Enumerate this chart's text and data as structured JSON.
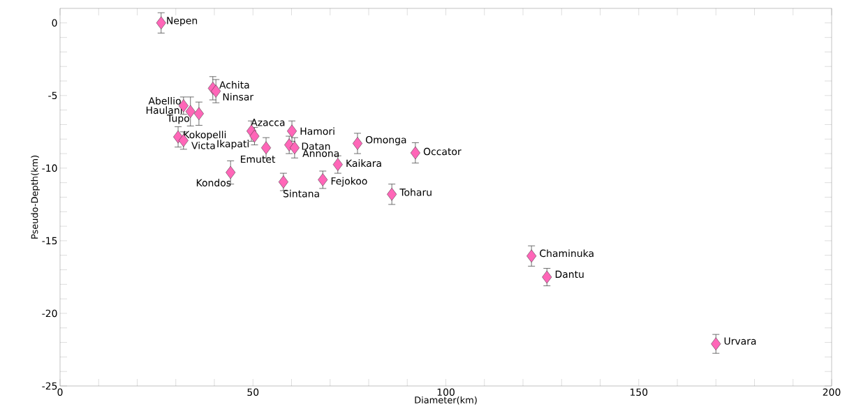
{
  "chart_data": {
    "type": "scatter",
    "xlabel": "Diameter(km)",
    "ylabel": "Pseudo-Depth(km)",
    "xlim": [
      0,
      200
    ],
    "ylim": [
      -25,
      1
    ],
    "xticks": [
      0,
      {
        "value": 10,
        "label": null
      },
      {
        "value": 20,
        "label": null
      },
      {
        "value": 30,
        "label": null
      },
      {
        "value": 40,
        "label": null
      },
      50,
      {
        "value": 60,
        "label": null
      },
      {
        "value": 70,
        "label": null
      },
      {
        "value": 80,
        "label": null
      },
      {
        "value": 90,
        "label": null
      },
      100,
      {
        "value": 110,
        "label": null
      },
      {
        "value": 120,
        "label": null
      },
      {
        "value": 130,
        "label": null
      },
      {
        "value": 140,
        "label": null
      },
      150,
      {
        "value": 160,
        "label": null
      },
      {
        "value": 170,
        "label": null
      },
      {
        "value": 180,
        "label": null
      },
      {
        "value": 190,
        "label": null
      },
      200
    ],
    "yticks": [
      -25,
      {
        "value": -24,
        "label": null
      },
      {
        "value": -23,
        "label": null
      },
      {
        "value": -22,
        "label": null
      },
      {
        "value": -21,
        "label": null
      },
      -20,
      {
        "value": -19,
        "label": null
      },
      {
        "value": -18,
        "label": null
      },
      {
        "value": -17,
        "label": null
      },
      {
        "value": -16,
        "label": null
      },
      -15,
      {
        "value": -14,
        "label": null
      },
      {
        "value": -13,
        "label": null
      },
      {
        "value": -12,
        "label": null
      },
      {
        "value": -11,
        "label": null
      },
      -10,
      {
        "value": -9,
        "label": null
      },
      {
        "value": -8,
        "label": null
      },
      {
        "value": -7,
        "label": null
      },
      {
        "value": -6,
        "label": null
      },
      -5,
      {
        "value": -4,
        "label": null
      },
      {
        "value": -3,
        "label": null
      },
      {
        "value": -2,
        "label": null
      },
      {
        "value": -1,
        "label": null
      },
      0
    ],
    "marker": "diamond",
    "grid": false,
    "series": [
      {
        "color": "#ff66b8",
        "x": [
          26.2,
          39.6,
          40.4,
          32.0,
          33.8,
          36.0,
          30.6,
          32.0,
          49.6,
          50.4,
          53.4,
          60.1,
          59.4,
          60.8,
          44.2,
          57.9,
          68.1,
          72.0,
          77.1,
          92.1,
          86.0,
          122.2,
          126.2,
          170.0
        ],
        "values": [
          0.0,
          -4.5,
          -4.7,
          -5.7,
          -6.1,
          -6.25,
          -7.85,
          -8.1,
          -7.45,
          -7.8,
          -8.6,
          -7.45,
          -8.4,
          -8.6,
          -10.3,
          -10.95,
          -10.8,
          -9.75,
          -8.3,
          -8.95,
          -11.8,
          -16.05,
          -17.5,
          -22.1
        ],
        "errors": [
          0.7,
          0.8,
          0.8,
          0.6,
          1.0,
          0.8,
          0.7,
          0.6,
          0.7,
          0.6,
          0.7,
          0.7,
          0.6,
          0.7,
          0.8,
          0.6,
          0.6,
          0.6,
          0.7,
          0.7,
          0.7,
          0.7,
          0.6,
          0.65
        ]
      }
    ],
    "annotations": [
      {
        "text": "Nepen",
        "x": 26.2,
        "y": 0.0
      },
      {
        "text": "Achita",
        "x": 39.6,
        "y": -4.5
      },
      {
        "text": "Ninsar",
        "x": 40.4,
        "y": -4.7
      },
      {
        "text": "Abellio",
        "x": 32.0,
        "y": -5.7
      },
      {
        "text": "Haulani",
        "x": 33.8,
        "y": -6.1
      },
      {
        "text": "Tupo",
        "x": 36.0,
        "y": -6.25
      },
      {
        "text": "Kokopelli",
        "x": 30.6,
        "y": -7.85
      },
      {
        "text": "Victa",
        "x": 32.0,
        "y": -8.1
      },
      {
        "text": "Azacca",
        "x": 49.6,
        "y": -7.45
      },
      {
        "text": "Ikapati",
        "x": 50.4,
        "y": -7.8
      },
      {
        "text": "Emutet",
        "x": 53.4,
        "y": -8.6
      },
      {
        "text": "Hamori",
        "x": 60.1,
        "y": -7.45
      },
      {
        "text": "Datan",
        "x": 59.4,
        "y": -8.4
      },
      {
        "text": "Annona",
        "x": 60.8,
        "y": -8.6
      },
      {
        "text": "Kondos",
        "x": 44.2,
        "y": -10.3
      },
      {
        "text": "Sintana",
        "x": 57.9,
        "y": -10.95
      },
      {
        "text": "Fejokoo",
        "x": 68.1,
        "y": -10.8
      },
      {
        "text": "Kaikara",
        "x": 72.0,
        "y": -9.75
      },
      {
        "text": "Omonga",
        "x": 77.1,
        "y": -8.3
      },
      {
        "text": "Occator",
        "x": 92.1,
        "y": -8.95
      },
      {
        "text": "Toharu",
        "x": 86.0,
        "y": -11.8
      },
      {
        "text": "Chaminuka",
        "x": 122.2,
        "y": -16.05
      },
      {
        "text": "Dantu",
        "x": 126.2,
        "y": -17.5
      },
      {
        "text": "Urvara",
        "x": 170.0,
        "y": -22.1
      }
    ]
  }
}
